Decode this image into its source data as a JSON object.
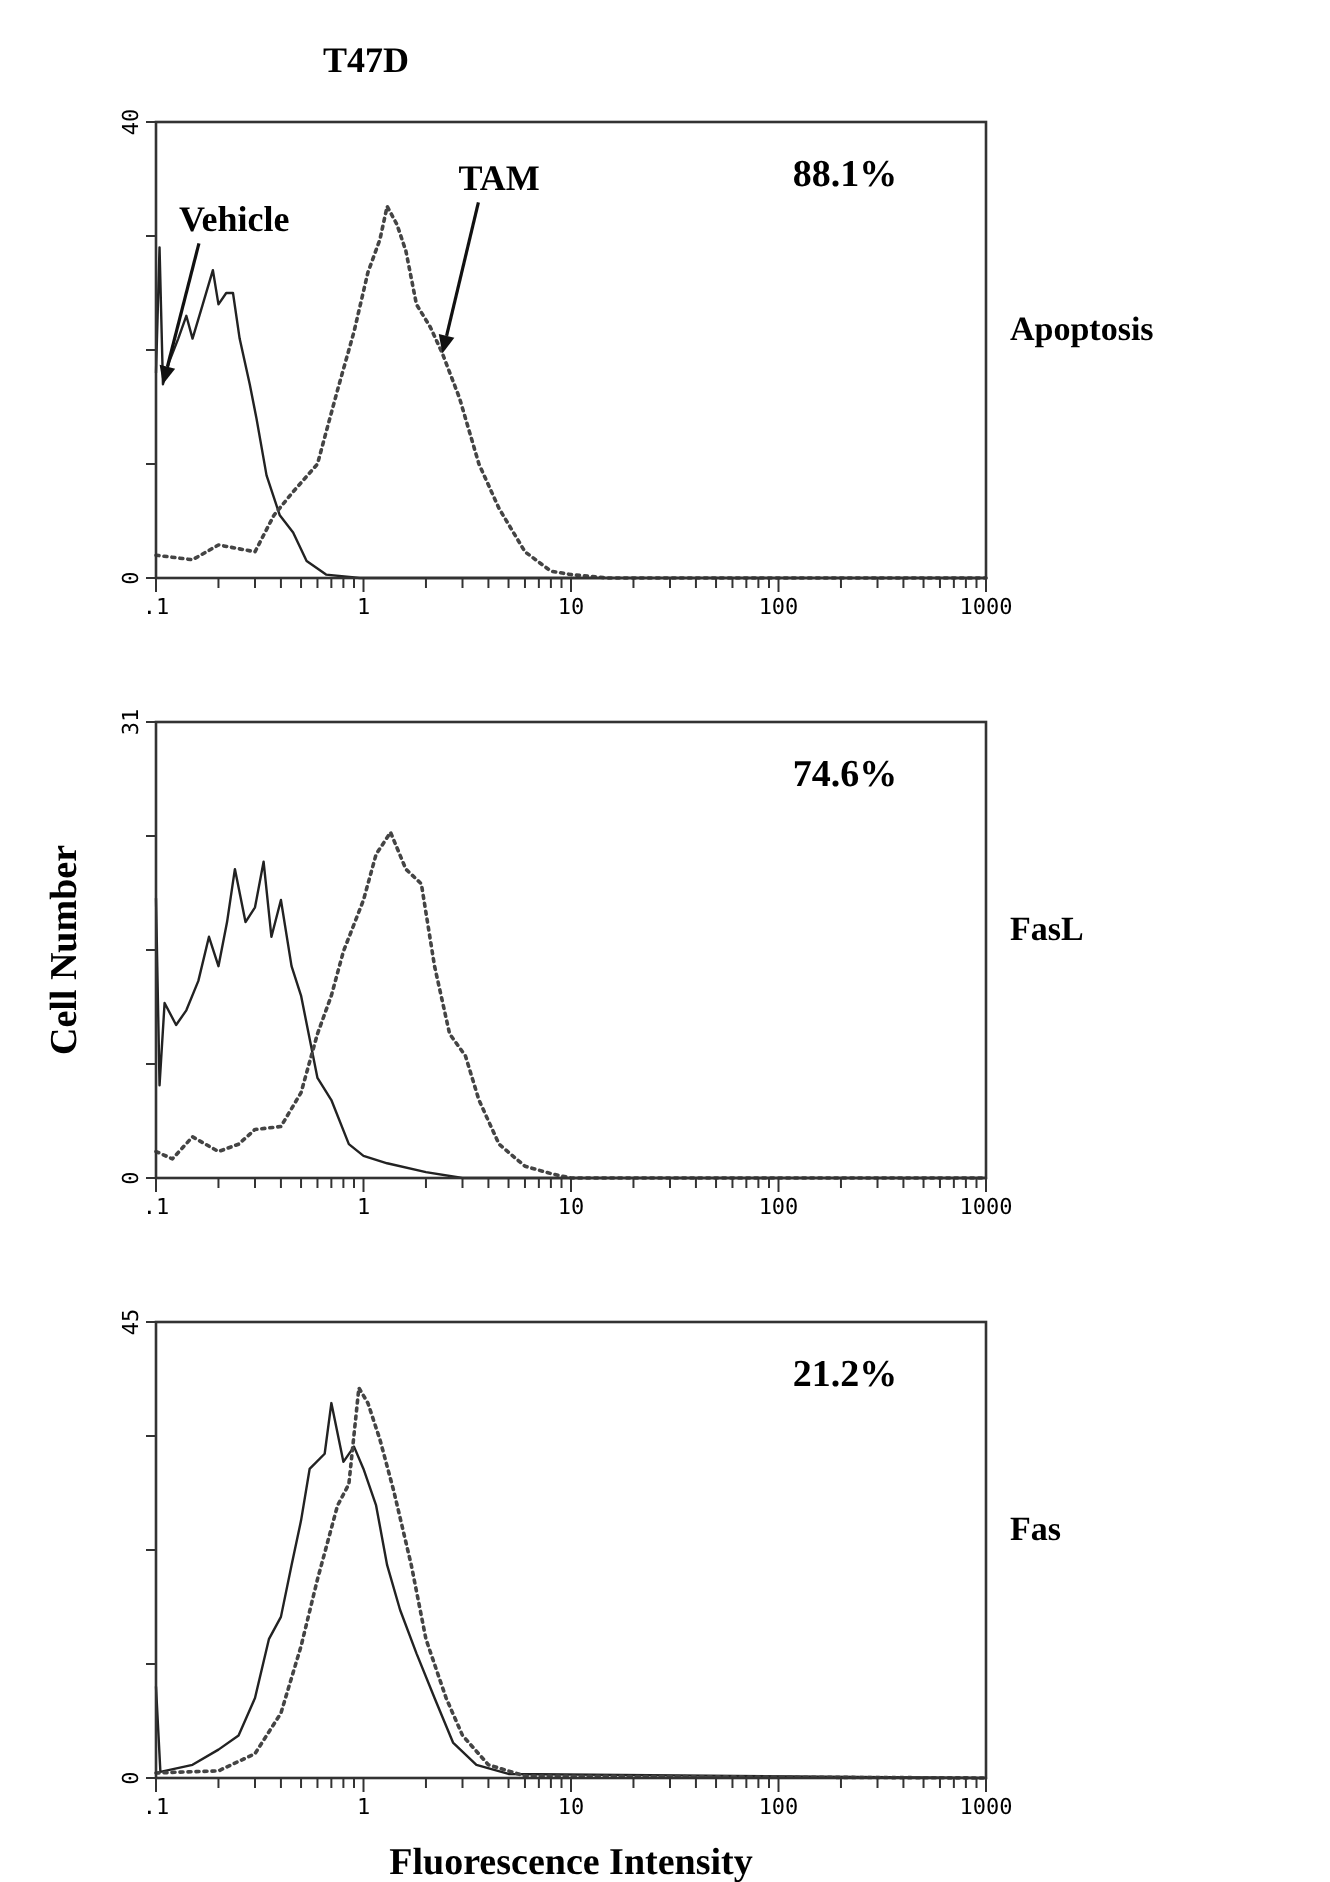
{
  "chart_data": [
    {
      "type": "line",
      "title": "T47D",
      "log": "x",
      "xlim": [
        0.1,
        1000
      ],
      "ylim": [
        0,
        40
      ],
      "xticks": [
        {
          "value": 0.1,
          "label": ".1"
        },
        {
          "value": 0.2,
          "label": null
        },
        {
          "value": 0.3,
          "label": null
        },
        {
          "value": 0.4,
          "label": null
        },
        {
          "value": 0.5,
          "label": null
        },
        {
          "value": 0.6,
          "label": null
        },
        {
          "value": 0.7,
          "label": null
        },
        {
          "value": 0.8,
          "label": null
        },
        {
          "value": 0.9,
          "label": null
        },
        1,
        {
          "value": 2,
          "label": null
        },
        {
          "value": 3,
          "label": null
        },
        {
          "value": 4,
          "label": null
        },
        {
          "value": 5,
          "label": null
        },
        {
          "value": 6,
          "label": null
        },
        {
          "value": 7,
          "label": null
        },
        {
          "value": 8,
          "label": null
        },
        {
          "value": 9,
          "label": null
        },
        10,
        {
          "value": 20,
          "label": null
        },
        {
          "value": 30,
          "label": null
        },
        {
          "value": 40,
          "label": null
        },
        {
          "value": 50,
          "label": null
        },
        {
          "value": 60,
          "label": null
        },
        {
          "value": 70,
          "label": null
        },
        {
          "value": 80,
          "label": null
        },
        {
          "value": 90,
          "label": null
        },
        100,
        {
          "value": 200,
          "label": null
        },
        {
          "value": 300,
          "label": null
        },
        {
          "value": 400,
          "label": null
        },
        {
          "value": 500,
          "label": null
        },
        {
          "value": 600,
          "label": null
        },
        {
          "value": 700,
          "label": null
        },
        {
          "value": 800,
          "label": null
        },
        {
          "value": 900,
          "label": null
        },
        1000
      ],
      "yticks": [
        0,
        {
          "value": 10,
          "label": null
        },
        {
          "value": 20,
          "label": null
        },
        {
          "value": 30,
          "label": null
        },
        40
      ],
      "annotations": [
        "88.1%",
        "Apoptosis"
      ],
      "series": [
        {
          "name": "Vehicle",
          "color": "#222222",
          "line_style": "solid",
          "x": [
            0.1,
            0.104,
            0.108,
            0.116,
            0.128,
            0.14,
            0.15,
            0.168,
            0.188,
            0.2,
            0.218,
            0.235,
            0.253,
            0.283,
            0.305,
            0.341,
            0.395,
            0.458,
            0.532,
            0.66,
            0.96,
            1000
          ],
          "values": [
            18,
            29,
            17,
            19,
            21,
            23,
            21,
            24,
            27,
            24,
            25,
            25,
            21,
            17,
            14,
            9,
            5.5,
            4,
            1.5,
            0.3,
            0,
            0
          ]
        },
        {
          "name": "TAM",
          "color": "#444444",
          "line_style": "dotted",
          "x": [
            0.1,
            0.15,
            0.2,
            0.3,
            0.37,
            0.45,
            0.6,
            0.75,
            0.9,
            1.05,
            1.2,
            1.3,
            1.45,
            1.6,
            1.8,
            2.1,
            2.4,
            2.9,
            3.6,
            4.5,
            6,
            8,
            10,
            15,
            1000
          ],
          "values": [
            2,
            1.6,
            2.9,
            2.3,
            5.5,
            7.4,
            10,
            16.5,
            21.6,
            26.8,
            29.7,
            32.6,
            31,
            28.7,
            24,
            22,
            19.7,
            15.8,
            10,
            6.1,
            2.3,
            0.6,
            0.3,
            0,
            0
          ]
        }
      ]
    },
    {
      "type": "line",
      "ylabel": "Cell Number",
      "log": "x",
      "xlim": [
        0.1,
        1000
      ],
      "ylim": [
        0,
        31
      ],
      "xticks": [
        {
          "value": 0.1,
          "label": ".1"
        },
        {
          "value": 0.2,
          "label": null
        },
        {
          "value": 0.3,
          "label": null
        },
        {
          "value": 0.4,
          "label": null
        },
        {
          "value": 0.5,
          "label": null
        },
        {
          "value": 0.6,
          "label": null
        },
        {
          "value": 0.7,
          "label": null
        },
        {
          "value": 0.8,
          "label": null
        },
        {
          "value": 0.9,
          "label": null
        },
        1,
        {
          "value": 2,
          "label": null
        },
        {
          "value": 3,
          "label": null
        },
        {
          "value": 4,
          "label": null
        },
        {
          "value": 5,
          "label": null
        },
        {
          "value": 6,
          "label": null
        },
        {
          "value": 7,
          "label": null
        },
        {
          "value": 8,
          "label": null
        },
        {
          "value": 9,
          "label": null
        },
        10,
        {
          "value": 20,
          "label": null
        },
        {
          "value": 30,
          "label": null
        },
        {
          "value": 40,
          "label": null
        },
        {
          "value": 50,
          "label": null
        },
        {
          "value": 60,
          "label": null
        },
        {
          "value": 70,
          "label": null
        },
        {
          "value": 80,
          "label": null
        },
        {
          "value": 90,
          "label": null
        },
        100,
        {
          "value": 200,
          "label": null
        },
        {
          "value": 300,
          "label": null
        },
        {
          "value": 400,
          "label": null
        },
        {
          "value": 500,
          "label": null
        },
        {
          "value": 600,
          "label": null
        },
        {
          "value": 700,
          "label": null
        },
        {
          "value": 800,
          "label": null
        },
        {
          "value": 900,
          "label": null
        },
        1000
      ],
      "yticks": [
        0,
        {
          "value": 7.75,
          "label": null
        },
        {
          "value": 15.5,
          "label": null
        },
        {
          "value": 23.25,
          "label": null
        },
        31
      ],
      "annotations": [
        "74.6%",
        "FasL"
      ],
      "series": [
        {
          "color": "#222222",
          "line_style": "solid",
          "x": [
            0.1,
            0.104,
            0.11,
            0.125,
            0.14,
            0.16,
            0.18,
            0.2,
            0.22,
            0.24,
            0.27,
            0.3,
            0.33,
            0.36,
            0.4,
            0.45,
            0.5,
            0.6,
            0.7,
            0.85,
            1,
            1.3,
            2,
            3,
            1000
          ],
          "values": [
            19,
            6.3,
            11.9,
            10.4,
            11.4,
            13.4,
            16.4,
            14.4,
            17.4,
            21,
            17.4,
            18.4,
            21.5,
            16.4,
            18.9,
            14.4,
            12.4,
            6.8,
            5.3,
            2.3,
            1.5,
            1,
            0.4,
            0,
            0
          ]
        },
        {
          "color": "#444444",
          "line_style": "dotted",
          "x": [
            0.1,
            0.12,
            0.15,
            0.2,
            0.25,
            0.3,
            0.4,
            0.5,
            0.6,
            0.7,
            0.8,
            1,
            1.15,
            1.35,
            1.6,
            1.9,
            2.2,
            2.6,
            3.1,
            3.6,
            4.5,
            6,
            8,
            10,
            1000
          ],
          "values": [
            1.8,
            1.3,
            2.8,
            1.8,
            2.3,
            3.3,
            3.5,
            5.8,
            9.8,
            12.4,
            15.4,
            18.9,
            22,
            23.5,
            21,
            20,
            14.4,
            9.8,
            8.3,
            5.3,
            2.3,
            0.8,
            0.3,
            0,
            0
          ]
        }
      ]
    },
    {
      "type": "line",
      "xlabel": "Fluorescence Intensity",
      "log": "x",
      "xlim": [
        0.1,
        1000
      ],
      "ylim": [
        0,
        45
      ],
      "xticks": [
        {
          "value": 0.1,
          "label": ".1"
        },
        {
          "value": 0.2,
          "label": null
        },
        {
          "value": 0.3,
          "label": null
        },
        {
          "value": 0.4,
          "label": null
        },
        {
          "value": 0.5,
          "label": null
        },
        {
          "value": 0.6,
          "label": null
        },
        {
          "value": 0.7,
          "label": null
        },
        {
          "value": 0.8,
          "label": null
        },
        {
          "value": 0.9,
          "label": null
        },
        1,
        {
          "value": 2,
          "label": null
        },
        {
          "value": 3,
          "label": null
        },
        {
          "value": 4,
          "label": null
        },
        {
          "value": 5,
          "label": null
        },
        {
          "value": 6,
          "label": null
        },
        {
          "value": 7,
          "label": null
        },
        {
          "value": 8,
          "label": null
        },
        {
          "value": 9,
          "label": null
        },
        10,
        {
          "value": 20,
          "label": null
        },
        {
          "value": 30,
          "label": null
        },
        {
          "value": 40,
          "label": null
        },
        {
          "value": 50,
          "label": null
        },
        {
          "value": 60,
          "label": null
        },
        {
          "value": 70,
          "label": null
        },
        {
          "value": 80,
          "label": null
        },
        {
          "value": 90,
          "label": null
        },
        100,
        {
          "value": 200,
          "label": null
        },
        {
          "value": 300,
          "label": null
        },
        {
          "value": 400,
          "label": null
        },
        {
          "value": 500,
          "label": null
        },
        {
          "value": 600,
          "label": null
        },
        {
          "value": 700,
          "label": null
        },
        {
          "value": 800,
          "label": null
        },
        {
          "value": 900,
          "label": null
        },
        1000
      ],
      "yticks": [
        0,
        {
          "value": 11.25,
          "label": null
        },
        {
          "value": 22.5,
          "label": null
        },
        {
          "value": 33.75,
          "label": null
        },
        45
      ],
      "annotations": [
        "21.2%",
        "Fas"
      ],
      "series": [
        {
          "color": "#222222",
          "line_style": "solid",
          "x": [
            0.1,
            0.105,
            0.15,
            0.2,
            0.25,
            0.3,
            0.35,
            0.4,
            0.45,
            0.5,
            0.55,
            0.65,
            0.7,
            0.8,
            0.9,
            1,
            1.15,
            1.3,
            1.5,
            1.8,
            2.2,
            2.7,
            3.5,
            5,
            1000
          ],
          "values": [
            9,
            0.6,
            1.3,
            2.8,
            4.2,
            7.9,
            13.7,
            15.9,
            21,
            25.4,
            30.5,
            32,
            37,
            31.2,
            32.7,
            30.5,
            26.9,
            21,
            16.6,
            12.3,
            7.9,
            3.5,
            1.3,
            0.4,
            0
          ]
        },
        {
          "color": "#444444",
          "line_style": "dotted",
          "x": [
            0.1,
            0.2,
            0.3,
            0.4,
            0.5,
            0.6,
            0.75,
            0.85,
            0.95,
            1.05,
            1.2,
            1.4,
            1.7,
            2,
            2.5,
            3,
            4,
            6,
            1000
          ],
          "values": [
            0.5,
            0.7,
            2.4,
            6.4,
            13,
            19.6,
            26.9,
            29,
            38.5,
            37,
            33.4,
            28.3,
            21,
            13.7,
            7.9,
            4.2,
            1.3,
            0.2,
            0
          ]
        }
      ]
    }
  ]
}
